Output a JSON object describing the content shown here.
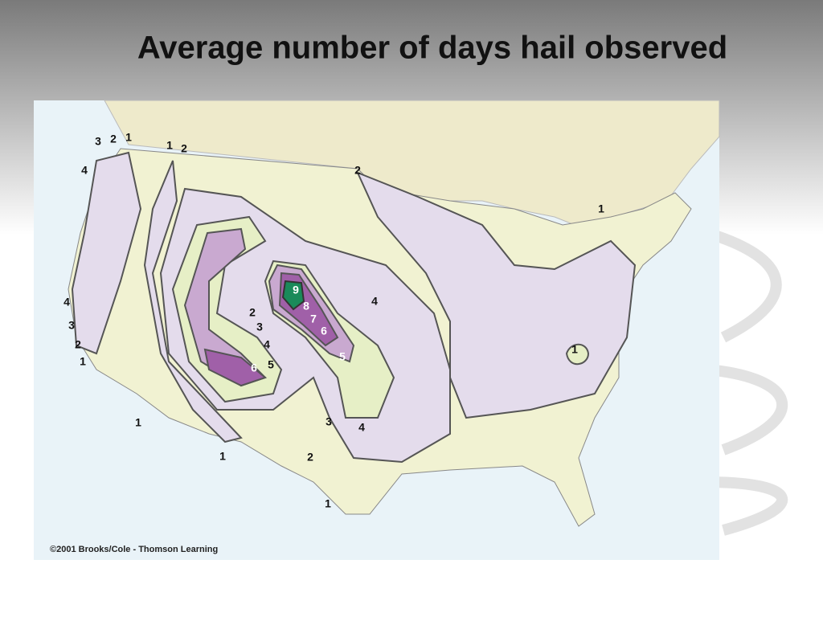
{
  "title": "Average number of days hail observed",
  "map": {
    "contour_labels": [
      "3",
      "2",
      "1",
      "1",
      "2",
      "4",
      "2",
      "1",
      "4",
      "3",
      "2",
      "1",
      "2",
      "3",
      "4",
      "5",
      "6",
      "9",
      "8",
      "7",
      "6",
      "5",
      "4",
      "1",
      "1",
      "1",
      "2",
      "3",
      "4",
      "1"
    ],
    "credit": "©2001 Brooks/Cole - Thomson Learning"
  }
}
